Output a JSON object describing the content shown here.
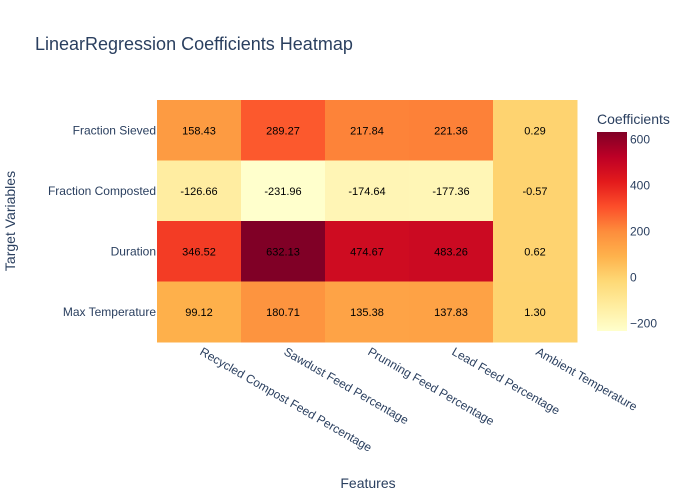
{
  "chart_data": {
    "type": "heatmap",
    "title": "LinearRegression Coefficients Heatmap",
    "xlabel": "Features",
    "ylabel": "Target Variables",
    "x_categories": [
      "Recycled Compost Feed Percentage",
      "Sawdust Feed Percentage",
      "Prunning Feed Percentage",
      "Lead Feed Percentage",
      "Ambient Temperature"
    ],
    "y_categories": [
      "Fraction Sieved",
      "Fraction Composted",
      "Duration",
      "Max Temperature"
    ],
    "values": [
      [
        158.43,
        289.27,
        217.84,
        221.36,
        0.29
      ],
      [
        -126.66,
        -231.96,
        -174.64,
        -177.36,
        -0.57
      ],
      [
        346.52,
        632.13,
        474.67,
        483.26,
        0.62
      ],
      [
        99.12,
        180.71,
        135.38,
        137.83,
        1.3
      ]
    ],
    "cell_labels": [
      [
        "158.43",
        "289.27",
        "217.84",
        "221.36",
        "0.29"
      ],
      [
        "-126.66",
        "-231.96",
        "-174.64",
        "-177.36",
        "-0.57"
      ],
      [
        "346.52",
        "632.13",
        "474.67",
        "483.26",
        "0.62"
      ],
      [
        "99.12",
        "180.71",
        "135.38",
        "137.83",
        "1.30"
      ]
    ],
    "zmin": -231.96,
    "zmax": 632.13,
    "colorscale": [
      "#ffffcc",
      "#ffeda0",
      "#fed976",
      "#feb24c",
      "#fd8d3c",
      "#fc4e2a",
      "#e31a1c",
      "#bd0026",
      "#800026"
    ],
    "colorbar": {
      "title": "Coefficients",
      "ticks": [
        -200,
        0,
        200,
        400,
        600
      ],
      "tick_labels": [
        "−200",
        "0",
        "200",
        "400",
        "600"
      ]
    }
  }
}
